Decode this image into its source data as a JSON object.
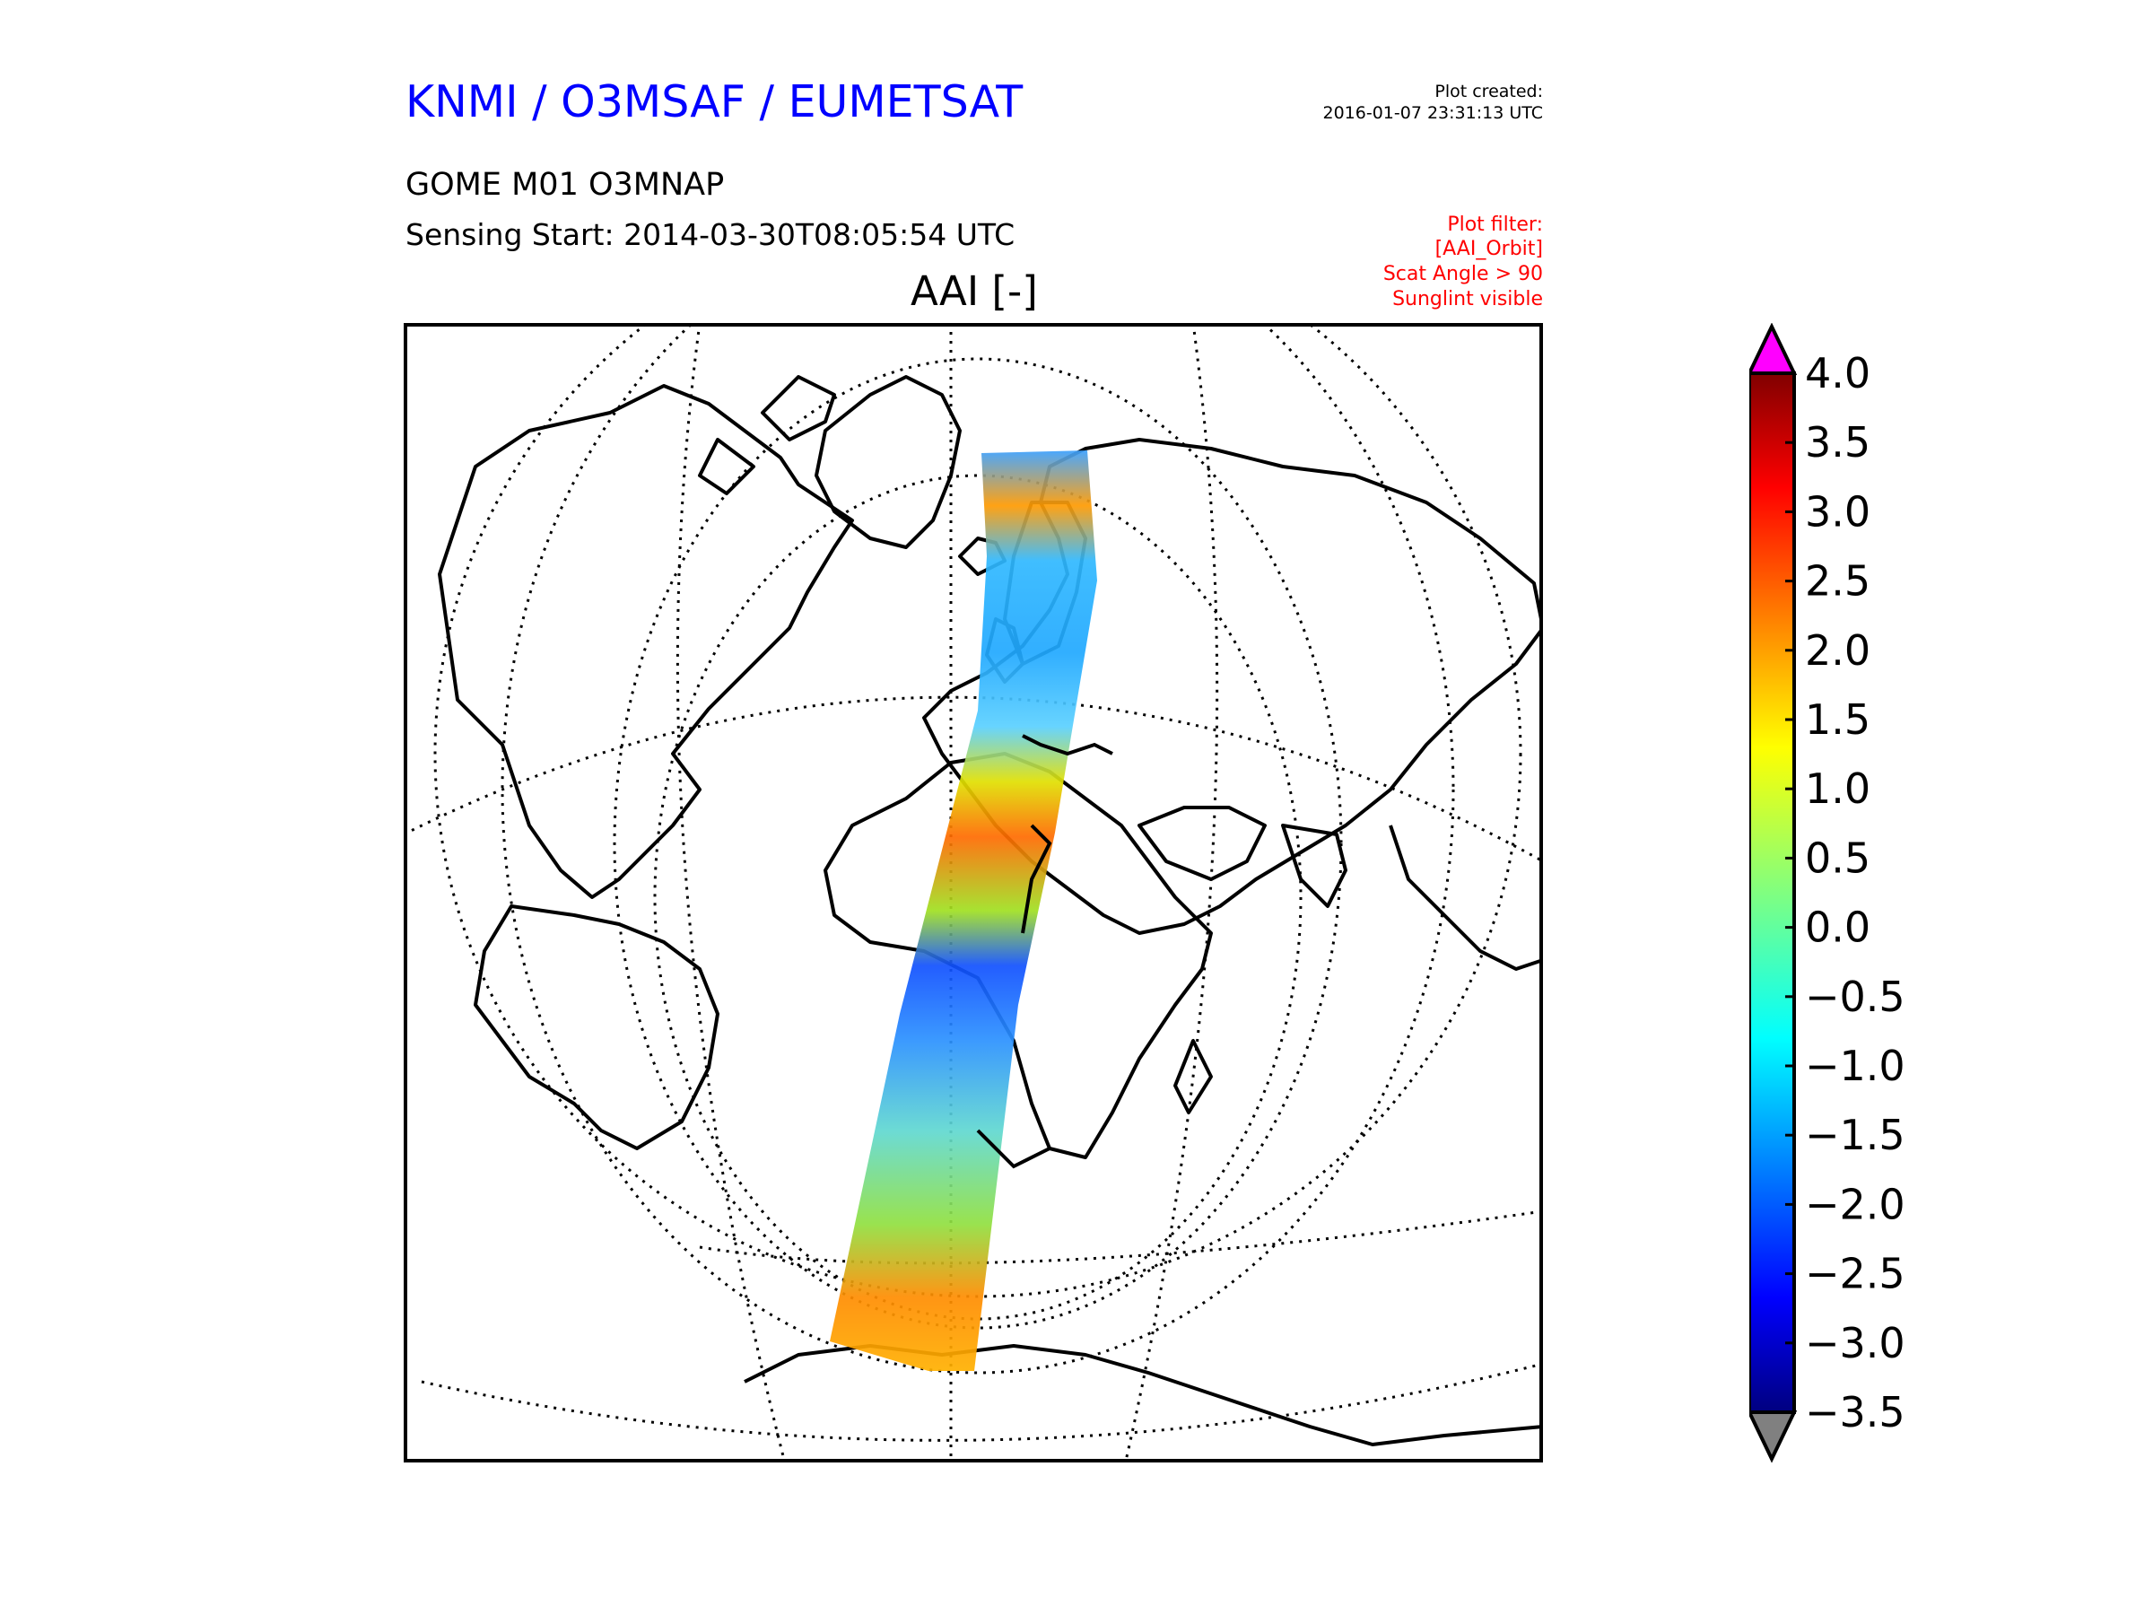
{
  "header": {
    "title": "KNMI / O3MSAF / EUMETSAT",
    "created_label": "Plot created:",
    "created_value": "2016-01-07 23:31:13 UTC",
    "product": "GOME M01 O3MNAP",
    "sensing": "Sensing Start: 2014-03-30T08:05:54 UTC"
  },
  "filters": [
    "Plot filter:",
    "[AAI_Orbit]",
    "Scat Angle > 90",
    "Sunglint visible"
  ],
  "plot_title": "AAI [-]",
  "colorbar": {
    "ticks": [
      "4.0",
      "3.5",
      "3.0",
      "2.5",
      "2.0",
      "1.5",
      "1.0",
      "0.5",
      "0.0",
      "−0.5",
      "−1.0",
      "−1.5",
      "−2.0",
      "−2.5",
      "−3.0",
      "−3.5"
    ],
    "min": -3.5,
    "max": 4.0,
    "over_color": "#ff00ff",
    "under_color": "#808080",
    "colormap": "jet"
  },
  "map": {
    "projection": "orthographic",
    "background": "#ffffff",
    "coastline_color": "#000000",
    "gridline_style": "dotted"
  }
}
